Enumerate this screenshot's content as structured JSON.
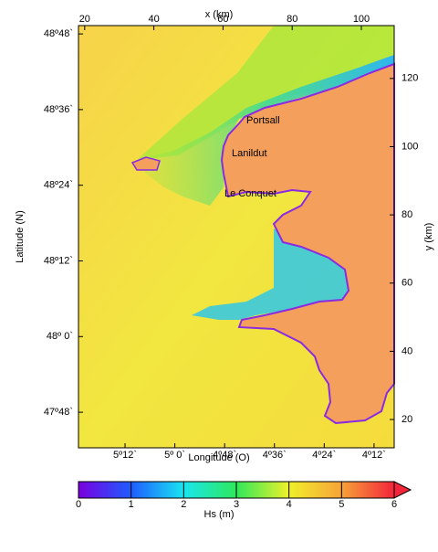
{
  "x_axis_top": {
    "label": "x (km)",
    "ticks": [
      20,
      40,
      60,
      80,
      100
    ],
    "lim": [
      18.2,
      109.5
    ]
  },
  "y_axis_right": {
    "label": "y (km)",
    "ticks": [
      20,
      40,
      60,
      80,
      100,
      120
    ],
    "lim": [
      11.7,
      135.5
    ]
  },
  "latitude_axis": {
    "label": "Latitude (N)",
    "lim": [
      47.706,
      48.822
    ],
    "ticks": [
      {
        "value": 48.8,
        "label": "48º48`"
      },
      {
        "value": 48.6,
        "label": "48º36`"
      },
      {
        "value": 48.4,
        "label": "48º24`"
      },
      {
        "value": 48.2,
        "label": "48º12`"
      },
      {
        "value": 48.0,
        "label": "48º 0`"
      },
      {
        "value": 47.8,
        "label": "47º48`"
      }
    ]
  },
  "longitude_axis": {
    "label": "Longitude (O)",
    "lim": [
      5.387,
      4.119
    ],
    "ticks": [
      {
        "value": 5.2,
        "label": "5º12`"
      },
      {
        "value": 5.0,
        "label": "5º 0`"
      },
      {
        "value": 4.8,
        "label": "4º48`"
      },
      {
        "value": 4.6,
        "label": "4º36`"
      },
      {
        "value": 4.4,
        "label": "4º24`"
      },
      {
        "value": 4.2,
        "label": "4º12`"
      }
    ]
  },
  "places": [
    "Portsall",
    "Lanildut",
    "Le Conquet"
  ],
  "colorbar": {
    "label": "Hs (m)",
    "ticks": [
      0,
      1,
      2,
      3,
      4,
      5,
      6
    ],
    "lim": [
      0,
      6
    ]
  }
}
